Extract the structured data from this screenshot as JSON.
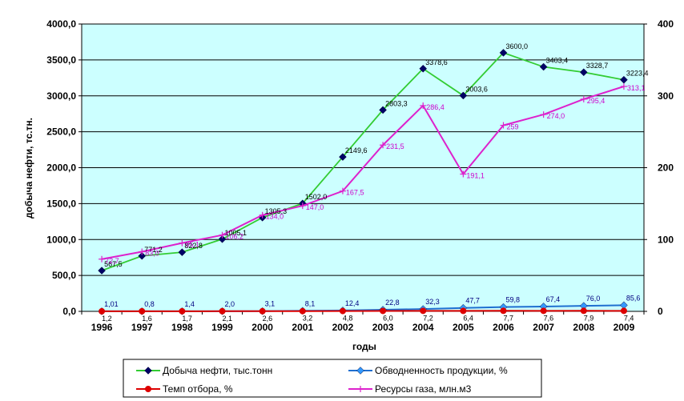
{
  "chart_data": {
    "type": "line",
    "xlabel": "годы",
    "ylabel": "добыча нефти, тс.тн.",
    "categories": [
      "1996",
      "1997",
      "1998",
      "1999",
      "2000",
      "2001",
      "2002",
      "2003",
      "2004",
      "2005",
      "2006",
      "2007",
      "2008",
      "2009"
    ],
    "y_ticks": [
      "0,0",
      "500,0",
      "1000,0",
      "1500,0",
      "2000,0",
      "2500,0",
      "3000,0",
      "3500,0",
      "4000,0"
    ],
    "y2_ticks": [
      "0",
      "100",
      "200",
      "300",
      "400"
    ],
    "ylim": [
      0,
      4000
    ],
    "y2lim": [
      0,
      400
    ],
    "grid": true,
    "legend_position": "bottom",
    "series": [
      {
        "name": "Добыча нефти, тыс.тонн",
        "axis": "left",
        "line_color": "#33cc33",
        "marker_color": "#000066",
        "marker": "diamond",
        "label_color": "#000000",
        "values": [
          567.5,
          771.2,
          822.8,
          1005.1,
          1305.3,
          1502.0,
          2149.6,
          2803.3,
          3378.6,
          3003.6,
          3600.0,
          3403.4,
          3328.7,
          3223.4
        ],
        "labels": [
          "567,5",
          "771,2",
          "822,8",
          "1005,1",
          "1305,3",
          "1502,0",
          "2149,6",
          "2803,3",
          "3378,6",
          "3003,6",
          "3600,0",
          "3403,4",
          "3328,7",
          "3223,4"
        ]
      },
      {
        "name": "Обводненность продукции, %",
        "axis": "left",
        "line_color": "#1f6fd0",
        "marker_color": "#3399ff",
        "marker": "diamond",
        "label_color": "#000080",
        "values": [
          1.01,
          0.8,
          1.4,
          2.0,
          3.1,
          8.1,
          12.4,
          22.8,
          32.3,
          47.7,
          59.8,
          67.4,
          76.0,
          85.6
        ],
        "labels": [
          "1,01",
          "0,8",
          "1,4",
          "2,0",
          "3,1",
          "8,1",
          "12,4",
          "22,8",
          "32,3",
          "47,7",
          "59,8",
          "67,4",
          "76,0",
          "85,6"
        ]
      },
      {
        "name": "Темп отбора, %",
        "axis": "left",
        "line_color": "#dd0000",
        "marker_color": "#dd0000",
        "marker": "circle",
        "label_color": "#000000",
        "values": [
          1.2,
          1.6,
          1.7,
          2.1,
          2.6,
          3.2,
          4.8,
          6.0,
          7.2,
          6.4,
          7.7,
          7.6,
          7.9,
          7.4
        ],
        "labels": [
          "1,2",
          "1,6",
          "1,7",
          "2,1",
          "2,6",
          "3,2",
          "4,8",
          "6,0",
          "7,2",
          "6,4",
          "7,7",
          "7,6",
          "7,9",
          "7,4"
        ]
      },
      {
        "name": "Ресурсы газа, млн.м3",
        "axis": "right",
        "line_color": "#dd22cc",
        "marker_color": "#dd22cc",
        "marker": "plus",
        "label_color": "#cc00cc",
        "values": [
          72.7,
          83.0,
          95.1,
          106.2,
          134.0,
          147.0,
          167.5,
          231.5,
          286.4,
          191.1,
          259.0,
          274.0,
          295.4,
          313.1
        ],
        "labels": [
          "72,7",
          "83,0",
          "95,1",
          "106,2",
          "134,0",
          "147,0",
          "167,5",
          "231,5",
          "286,4",
          "191,1",
          "259",
          "274,0",
          "295,4",
          "313,1"
        ]
      }
    ],
    "colors": {
      "plot_background": "#ccffff",
      "grid": "#000000"
    }
  }
}
